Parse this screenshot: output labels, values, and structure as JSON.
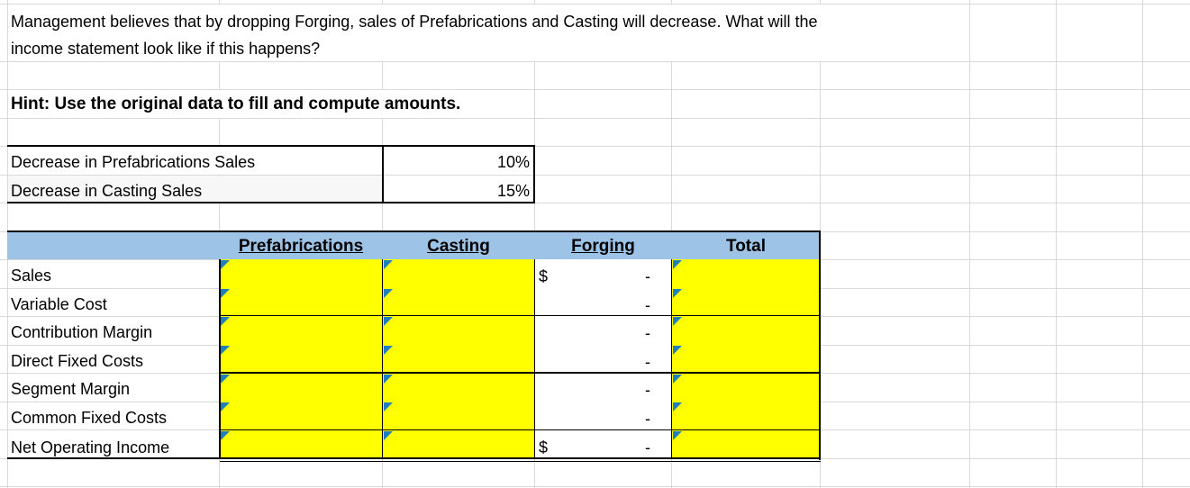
{
  "question": {
    "line1": "Management believes that by dropping Forging, sales of Prefabrications and Casting will decrease. What will the",
    "line2": "income statement look like if this happens?"
  },
  "hint": "Hint:  Use the original data to fill and compute amounts.",
  "assumptions": [
    {
      "label": "Decrease in Prefabrications Sales",
      "value": "10%"
    },
    {
      "label": "Decrease in Casting Sales",
      "value": "15%"
    }
  ],
  "table": {
    "headers": [
      "Prefabrications",
      "Casting",
      "Forging",
      "Total"
    ],
    "rows": [
      {
        "label": "Sales",
        "forging_currency": "$",
        "forging_value": "-"
      },
      {
        "label": "Variable Cost",
        "forging_currency": "",
        "forging_value": "-"
      },
      {
        "label": "Contribution Margin",
        "forging_currency": "",
        "forging_value": "-"
      },
      {
        "label": "Direct Fixed Costs",
        "forging_currency": "",
        "forging_value": "-"
      },
      {
        "label": "Segment Margin",
        "forging_currency": "",
        "forging_value": "-"
      },
      {
        "label": "Common Fixed Costs",
        "forging_currency": "",
        "forging_value": "-"
      },
      {
        "label": "Net Operating Income",
        "forging_currency": "$",
        "forging_value": "-"
      }
    ]
  },
  "colors": {
    "input_fill": "#ffff00",
    "header_fill": "#9dc3e6",
    "comment_marker": "#1f7fb8",
    "gridline": "#d9d9d9"
  }
}
